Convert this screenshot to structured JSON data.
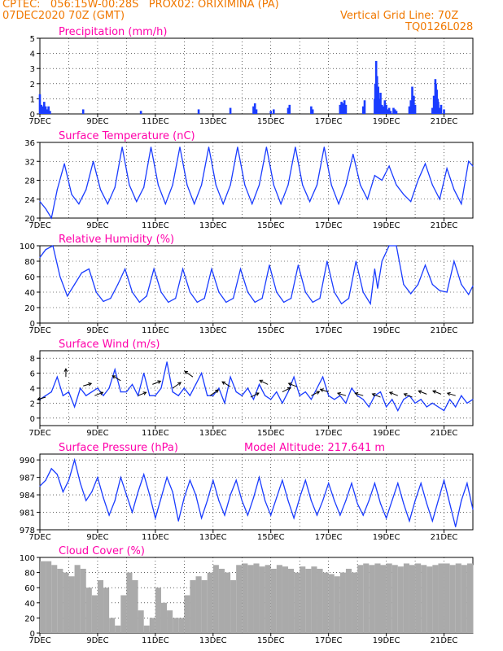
{
  "header": {
    "line1": "CPTEC:   056:15W-00:28S   PROX02: ORIXIMINA (PA)",
    "line2_left": "07DEC2020 70Z (GMT)",
    "line2_right": "Vertical Grid Line: 70Z",
    "line3_right": "TQ0126L028",
    "colors": {
      "header": "#f07800",
      "panel_title": "#ff00aa",
      "line": "#1a3cff",
      "bar": "#1a3cff",
      "cloud": "#aaaaaa"
    }
  },
  "x_axis": {
    "tick_labels": [
      "7DEC",
      "9DEC",
      "11DEC",
      "13DEC",
      "15DEC",
      "17DEC",
      "19DEC",
      "21DEC"
    ],
    "range_days": [
      7,
      22
    ]
  },
  "chart_data": [
    {
      "type": "bar",
      "title": "Precipitation  (mm/h)",
      "ylim": [
        0,
        5
      ],
      "yticks": [
        "0",
        "1",
        "2",
        "3",
        "4",
        "5"
      ],
      "x": [
        7.0,
        7.05,
        7.1,
        7.15,
        7.2,
        7.25,
        7.3,
        7.35,
        8.5,
        10.5,
        12.5,
        13.6,
        14.4,
        14.45,
        14.5,
        15.0,
        15.1,
        15.6,
        15.65,
        16.4,
        16.45,
        17.4,
        17.45,
        17.5,
        17.55,
        17.6,
        18.2,
        18.25,
        18.6,
        18.62,
        18.65,
        18.68,
        18.7,
        18.72,
        18.75,
        18.78,
        18.8,
        18.85,
        18.9,
        18.95,
        19.0,
        19.05,
        19.1,
        19.15,
        19.25,
        19.3,
        19.35,
        19.8,
        19.85,
        19.9,
        19.95,
        20.0,
        20.6,
        20.65,
        20.7,
        20.72,
        20.75,
        20.78,
        20.8,
        20.85,
        20.9,
        21.0
      ],
      "values": [
        1.3,
        0.6,
        0.5,
        0.8,
        0.5,
        0.3,
        0.5,
        0.2,
        0.3,
        0.2,
        0.3,
        0.4,
        0.5,
        0.7,
        0.3,
        0.2,
        0.3,
        0.4,
        0.6,
        0.5,
        0.3,
        0.6,
        0.8,
        0.7,
        0.9,
        0.6,
        0.5,
        0.9,
        1.0,
        2.0,
        3.5,
        2.5,
        1.5,
        1.8,
        1.0,
        0.8,
        1.4,
        0.6,
        0.5,
        0.9,
        0.6,
        0.3,
        0.4,
        0.2,
        0.4,
        0.3,
        0.2,
        0.5,
        0.9,
        1.8,
        1.2,
        0.6,
        0.4,
        1.2,
        2.3,
        2.0,
        1.6,
        1.0,
        0.8,
        0.4,
        0.6,
        0.3
      ]
    },
    {
      "type": "line",
      "title": "Surface Temperature (nC)",
      "ylim": [
        20,
        36
      ],
      "yticks": [
        "20",
        "24",
        "28",
        "32",
        "36"
      ],
      "series": [
        {
          "x": [
            7.0,
            7.2,
            7.4,
            7.6,
            7.85,
            8.1,
            8.35,
            8.6,
            8.85,
            9.1,
            9.35,
            9.6,
            9.85,
            10.1,
            10.35,
            10.6,
            10.85,
            11.1,
            11.35,
            11.6,
            11.85,
            12.1,
            12.35,
            12.6,
            12.85,
            13.1,
            13.35,
            13.6,
            13.85,
            14.1,
            14.35,
            14.6,
            14.85,
            15.1,
            15.35,
            15.6,
            15.85,
            16.1,
            16.35,
            16.6,
            16.85,
            17.1,
            17.35,
            17.6,
            17.85,
            18.1,
            18.35,
            18.6,
            18.85,
            19.1,
            19.35,
            19.6,
            19.85,
            20.1,
            20.35,
            20.6,
            20.85,
            21.1,
            21.35,
            21.6,
            21.85,
            22.0
          ],
          "values": [
            23.5,
            22.0,
            20.0,
            26.0,
            31.5,
            25.0,
            23.0,
            26.0,
            32.0,
            26.0,
            23.0,
            26.5,
            35.0,
            27.0,
            23.5,
            26.5,
            35.0,
            27.0,
            23.0,
            27.0,
            35.0,
            27.0,
            23.0,
            27.0,
            35.0,
            27.0,
            23.0,
            27.0,
            35.0,
            27.0,
            23.0,
            27.0,
            35.0,
            27.0,
            23.0,
            27.0,
            35.0,
            27.0,
            23.5,
            27.0,
            35.0,
            27.0,
            23.0,
            27.0,
            33.5,
            27.0,
            24.0,
            29.0,
            28.0,
            31.0,
            27.0,
            25.0,
            23.5,
            28.0,
            31.5,
            27.0,
            24.0,
            30.5,
            26.0,
            23.0,
            32.0,
            31.0
          ]
        }
      ]
    },
    {
      "type": "line",
      "title": "Relative Humidity (%)",
      "ylim": [
        0,
        100
      ],
      "yticks": [
        "0",
        "20",
        "40",
        "60",
        "80",
        "100"
      ],
      "series": [
        {
          "x": [
            7.0,
            7.2,
            7.45,
            7.7,
            7.95,
            8.2,
            8.45,
            8.7,
            8.95,
            9.2,
            9.45,
            9.7,
            9.95,
            10.2,
            10.45,
            10.7,
            10.95,
            11.2,
            11.45,
            11.7,
            11.95,
            12.2,
            12.45,
            12.7,
            12.95,
            13.2,
            13.45,
            13.7,
            13.95,
            14.2,
            14.45,
            14.7,
            14.95,
            15.2,
            15.45,
            15.7,
            15.95,
            16.2,
            16.45,
            16.7,
            16.95,
            17.2,
            17.45,
            17.7,
            17.95,
            18.2,
            18.45,
            18.6,
            18.7,
            18.85,
            19.1,
            19.35,
            19.6,
            19.85,
            20.1,
            20.35,
            20.6,
            20.85,
            21.1,
            21.35,
            21.6,
            21.85,
            22.0
          ],
          "values": [
            85,
            95,
            100,
            60,
            35,
            50,
            65,
            70,
            40,
            28,
            32,
            50,
            70,
            40,
            27,
            35,
            70,
            40,
            27,
            32,
            70,
            40,
            27,
            32,
            70,
            40,
            27,
            32,
            70,
            40,
            27,
            32,
            75,
            40,
            27,
            32,
            75,
            40,
            27,
            32,
            80,
            40,
            25,
            32,
            80,
            40,
            25,
            70,
            45,
            80,
            100,
            100,
            50,
            38,
            50,
            75,
            50,
            42,
            40,
            80,
            50,
            37,
            48
          ]
        }
      ]
    },
    {
      "type": "line",
      "title": "Surface Wind (m/s)",
      "ylim": [
        -1,
        9
      ],
      "yticks": [
        "0",
        "2",
        "4",
        "6",
        "8"
      ],
      "series": [
        {
          "x": [
            7.0,
            7.2,
            7.4,
            7.6,
            7.8,
            8.0,
            8.2,
            8.4,
            8.6,
            8.8,
            9.0,
            9.2,
            9.4,
            9.6,
            9.8,
            10.0,
            10.2,
            10.4,
            10.6,
            10.8,
            11.0,
            11.2,
            11.4,
            11.6,
            11.8,
            12.0,
            12.2,
            12.4,
            12.6,
            12.8,
            13.0,
            13.2,
            13.4,
            13.6,
            13.8,
            14.0,
            14.2,
            14.4,
            14.6,
            14.8,
            15.0,
            15.2,
            15.4,
            15.6,
            15.8,
            16.0,
            16.2,
            16.4,
            16.6,
            16.8,
            17.0,
            17.2,
            17.4,
            17.6,
            17.8,
            18.0,
            18.2,
            18.4,
            18.6,
            18.8,
            19.0,
            19.2,
            19.4,
            19.6,
            19.8,
            20.0,
            20.2,
            20.4,
            20.6,
            20.8,
            21.0,
            21.2,
            21.4,
            21.6,
            21.8,
            22.0
          ],
          "values": [
            2.5,
            3.0,
            3.5,
            5.5,
            3.0,
            3.5,
            1.5,
            4.0,
            3.0,
            3.5,
            4.0,
            3.0,
            4.0,
            6.5,
            3.5,
            3.5,
            4.5,
            3.0,
            6.0,
            3.0,
            3.0,
            4.0,
            7.5,
            3.5,
            3.0,
            4.0,
            3.0,
            4.5,
            6.0,
            3.0,
            3.0,
            4.0,
            2.0,
            5.5,
            3.5,
            3.0,
            4.0,
            2.5,
            4.5,
            3.0,
            2.5,
            3.5,
            2.0,
            3.5,
            5.5,
            3.0,
            3.5,
            2.5,
            4.0,
            5.5,
            3.0,
            2.5,
            3.0,
            2.0,
            4.0,
            3.0,
            2.5,
            1.5,
            3.0,
            3.5,
            1.5,
            2.5,
            1.0,
            2.5,
            3.0,
            2.0,
            2.5,
            1.5,
            2.0,
            1.5,
            1.0,
            2.5,
            1.5,
            3.0,
            2.0,
            2.5
          ]
        }
      ],
      "arrows": {
        "x": [
          7.2,
          7.9,
          8.5,
          8.9,
          9.8,
          10.4,
          10.9,
          11.6,
          12.3,
          12.9,
          13.6,
          14.3,
          14.9,
          15.4,
          15.9,
          16.4,
          17.0,
          17.6,
          18.2,
          18.8,
          19.4,
          19.9,
          20.4,
          20.9,
          21.4
        ],
        "y": [
          2.8,
          5.5,
          4.3,
          3.0,
          5.0,
          3.0,
          4.5,
          4.0,
          5.5,
          3.0,
          4.2,
          2.8,
          4.5,
          3.5,
          4.2,
          3.0,
          3.5,
          3.0,
          3.0,
          2.8,
          3.0,
          2.8,
          3.2,
          3.2,
          3.0
        ],
        "dx": [
          -1,
          0,
          1,
          1,
          -1,
          1,
          1,
          1,
          -1,
          1,
          -1,
          1,
          -1,
          1,
          -1,
          1,
          -1,
          -1,
          -1,
          -1,
          -1,
          -1,
          -1,
          -1,
          -1
        ],
        "dy": [
          -0.3,
          1.0,
          0.3,
          0.4,
          0.6,
          0.4,
          0.4,
          0.7,
          0.7,
          0.7,
          0.6,
          0.5,
          0.5,
          0.5,
          0.4,
          0.5,
          0.3,
          0.3,
          0.3,
          0.4,
          0.4,
          0.4,
          0.4,
          0.4,
          0.3
        ]
      }
    },
    {
      "type": "line",
      "title": "Surface Pressure (hPa)",
      "annotation": "Model Altitude: 217.641  m",
      "ylim": [
        978,
        991
      ],
      "yticks": [
        "978",
        "981",
        "984",
        "987",
        "990"
      ],
      "series": [
        {
          "x": [
            7.0,
            7.2,
            7.4,
            7.6,
            7.8,
            8.0,
            8.2,
            8.4,
            8.6,
            8.8,
            9.0,
            9.2,
            9.4,
            9.6,
            9.8,
            10.0,
            10.2,
            10.4,
            10.6,
            10.8,
            11.0,
            11.2,
            11.4,
            11.6,
            11.8,
            12.0,
            12.2,
            12.4,
            12.6,
            12.8,
            13.0,
            13.2,
            13.4,
            13.6,
            13.8,
            14.0,
            14.2,
            14.4,
            14.6,
            14.8,
            15.0,
            15.2,
            15.4,
            15.6,
            15.8,
            16.0,
            16.2,
            16.4,
            16.6,
            16.8,
            17.0,
            17.2,
            17.4,
            17.6,
            17.8,
            18.0,
            18.2,
            18.4,
            18.6,
            18.8,
            19.0,
            19.2,
            19.4,
            19.6,
            19.8,
            20.0,
            20.2,
            20.4,
            20.6,
            20.8,
            21.0,
            21.2,
            21.4,
            21.6,
            21.8,
            22.0
          ],
          "values": [
            985.5,
            986.5,
            988.5,
            987.5,
            984.5,
            986.5,
            990.0,
            986.0,
            983.0,
            984.5,
            987.0,
            983.5,
            980.5,
            983.0,
            987.0,
            984.0,
            981.0,
            984.5,
            987.5,
            984.0,
            980.0,
            983.5,
            987.0,
            984.5,
            979.5,
            983.5,
            986.5,
            984.0,
            980.0,
            983.0,
            986.5,
            983.0,
            980.5,
            984.0,
            986.5,
            983.0,
            980.5,
            983.5,
            987.0,
            983.0,
            980.5,
            983.5,
            986.5,
            983.0,
            980.0,
            983.5,
            986.5,
            983.0,
            980.5,
            983.0,
            986.0,
            983.0,
            980.5,
            983.0,
            986.0,
            982.5,
            980.5,
            983.0,
            986.0,
            982.5,
            980.0,
            983.0,
            986.0,
            982.5,
            979.5,
            983.0,
            986.0,
            982.5,
            979.5,
            983.0,
            986.5,
            982.5,
            978.5,
            983.0,
            986.0,
            981.5
          ]
        }
      ]
    },
    {
      "type": "area",
      "title": "Cloud Cover (%)",
      "ylim": [
        0,
        100
      ],
      "yticks": [
        "0",
        "20",
        "40",
        "60",
        "80",
        "100"
      ],
      "series": [
        {
          "x": [
            7.0,
            7.2,
            7.4,
            7.6,
            7.8,
            8.0,
            8.2,
            8.4,
            8.6,
            8.8,
            9.0,
            9.2,
            9.4,
            9.6,
            9.8,
            10.0,
            10.2,
            10.4,
            10.6,
            10.8,
            11.0,
            11.2,
            11.4,
            11.6,
            11.8,
            12.0,
            12.2,
            12.4,
            12.6,
            12.8,
            13.0,
            13.2,
            13.4,
            13.6,
            13.8,
            14.0,
            14.2,
            14.4,
            14.6,
            14.8,
            15.0,
            15.2,
            15.4,
            15.6,
            15.8,
            16.0,
            16.2,
            16.4,
            16.6,
            16.8,
            17.0,
            17.2,
            17.4,
            17.6,
            17.8,
            18.0,
            18.2,
            18.4,
            18.6,
            18.8,
            19.0,
            19.2,
            19.4,
            19.6,
            19.8,
            20.0,
            20.2,
            20.4,
            20.6,
            20.8,
            21.0,
            21.2,
            21.4,
            21.6,
            21.8,
            22.0
          ],
          "values": [
            95,
            95,
            90,
            85,
            80,
            75,
            90,
            85,
            60,
            50,
            70,
            60,
            20,
            10,
            50,
            80,
            70,
            30,
            10,
            20,
            60,
            40,
            30,
            20,
            20,
            50,
            70,
            75,
            70,
            80,
            90,
            85,
            80,
            70,
            90,
            92,
            90,
            92,
            88,
            90,
            85,
            90,
            88,
            85,
            80,
            88,
            85,
            88,
            85,
            80,
            78,
            75,
            80,
            85,
            80,
            90,
            92,
            90,
            92,
            90,
            92,
            90,
            88,
            92,
            90,
            92,
            90,
            88,
            90,
            92,
            92,
            90,
            92,
            90,
            92,
            90
          ]
        }
      ]
    }
  ]
}
